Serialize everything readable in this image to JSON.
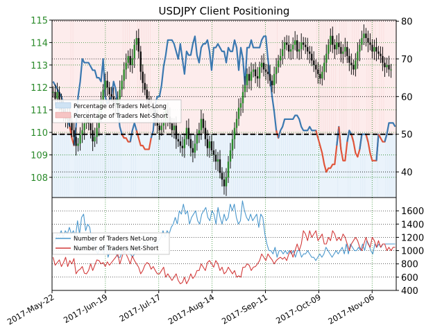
{
  "chart_data": [
    {
      "type": "line",
      "title": "USDJPY Client Positioning",
      "left_axis": {
        "ticks": [
          108,
          109,
          110,
          111,
          112,
          113,
          114,
          115
        ],
        "range": [
          107.1,
          115.0
        ],
        "color": "#2a8a2a"
      },
      "right_axis": {
        "ticks": [
          40,
          50,
          60,
          70,
          80
        ],
        "range": [
          33.2,
          80.3
        ]
      },
      "reference_line": 50,
      "legend": {
        "placement": "left",
        "entries": [
          {
            "name": "Percentage of Traders Net-Long",
            "color": "#cfe3f4"
          },
          {
            "name": "Percentage of Traders Net-Short",
            "color": "#f6c4c4"
          }
        ]
      },
      "series": [
        {
          "name": "Percentage of Traders Net-Long",
          "color": "#3a78b0",
          "values": [
            64,
            63,
            62,
            61,
            60,
            58,
            56,
            54,
            52,
            49,
            47,
            52,
            60,
            64,
            70,
            69,
            69,
            69,
            68,
            67,
            67,
            65,
            65,
            64,
            70,
            60,
            58,
            59,
            60,
            64,
            62,
            57,
            52,
            50,
            49,
            49,
            48,
            48,
            51,
            53,
            51,
            49,
            47,
            47,
            46,
            46,
            46,
            49,
            51,
            58,
            60,
            60,
            63,
            68,
            71,
            75,
            75,
            75,
            74,
            72,
            70,
            74,
            70,
            66,
            72,
            71,
            71,
            74,
            76,
            71,
            69,
            73,
            74,
            74,
            75,
            72,
            67,
            73,
            73,
            74,
            73,
            72,
            72,
            69,
            73,
            72,
            72,
            75,
            73,
            67,
            73,
            70,
            63,
            73,
            73,
            75,
            73,
            73,
            73,
            73,
            75,
            76,
            76,
            70,
            65,
            60,
            56,
            51,
            49,
            51,
            52,
            54,
            54,
            54,
            54,
            54,
            55,
            55,
            54,
            52,
            51,
            51,
            51,
            52,
            51,
            51,
            51,
            49,
            47,
            45,
            42,
            40,
            41,
            41,
            42,
            42,
            47,
            52,
            46,
            43,
            43,
            48,
            51,
            50,
            48,
            45,
            44,
            46,
            50,
            50,
            50,
            48,
            45,
            43,
            43,
            43,
            50,
            49,
            48,
            48,
            50,
            53,
            53,
            53,
            52
          ]
        },
        {
          "name": "USDJPY",
          "color": "#111111",
          "values": [
            111.8,
            111.5,
            111.8,
            111.4,
            111.0,
            110.8,
            110.6,
            110.9,
            110.5,
            110.1,
            109.8,
            109.4,
            109.5,
            109.9,
            110.1,
            110.4,
            110.6,
            110.4,
            110.1,
            109.6,
            109.8,
            110.2,
            110.9,
            111.4,
            111.9,
            112.3,
            112.0,
            111.7,
            111.6,
            111.3,
            111.1,
            111.5,
            111.9,
            112.3,
            112.8,
            113.1,
            113.4,
            113.0,
            113.3,
            113.9,
            114.2,
            113.6,
            112.7,
            112.2,
            111.9,
            111.5,
            111.2,
            111.1,
            111.0,
            110.6,
            110.3,
            110.1,
            110.3,
            110.5,
            111.0,
            110.7,
            110.4,
            110.1,
            110.3,
            109.7,
            109.6,
            109.4,
            109.3,
            109.7,
            110.2,
            109.7,
            109.3,
            109.1,
            109.5,
            109.9,
            110.1,
            110.6,
            110.2,
            109.7,
            109.3,
            109.6,
            109.2,
            109.0,
            108.7,
            108.8,
            108.2,
            107.9,
            107.6,
            108.0,
            108.7,
            109.2,
            109.7,
            110.2,
            110.6,
            111.1,
            111.3,
            111.8,
            112.1,
            112.6,
            112.3,
            112.7,
            112.8,
            112.5,
            112.4,
            112.9,
            113.1,
            112.8,
            112.7,
            112.6,
            112.3,
            112.1,
            112.6,
            112.9,
            113.2,
            113.4,
            113.7,
            114.0,
            113.9,
            113.6,
            113.7,
            113.9,
            114.1,
            113.6,
            113.7,
            114.0,
            113.9,
            113.8,
            113.6,
            113.5,
            113.2,
            113.0,
            112.8,
            112.6,
            112.4,
            112.7,
            113.1,
            113.5,
            113.9,
            114.3,
            113.9,
            113.7,
            114.0,
            113.8,
            113.5,
            113.6,
            113.8,
            113.4,
            113.1,
            113.0,
            112.8,
            113.2,
            113.6,
            113.9,
            114.2,
            114.4,
            114.2,
            114.0,
            113.9,
            113.6,
            113.8,
            113.6,
            113.5,
            113.4,
            113.1,
            112.9,
            113.0,
            112.8,
            112.8
          ]
        }
      ]
    },
    {
      "type": "line",
      "right_axis": {
        "ticks": [
          400,
          600,
          800,
          1000,
          1200,
          1400,
          1600
        ],
        "range": [
          400,
          1800
        ]
      },
      "x_ticks": [
        "2017-May-22",
        "2017-Jun-19",
        "2017-Jul-17",
        "2017-Aug-14",
        "2017-Sep-11",
        "2017-Oct-09",
        "2017-Nov-06"
      ],
      "legend": {
        "placement": "left"
      },
      "series": [
        {
          "name": "Number of Traders Net-Long",
          "color": "#4a97cc",
          "values": [
            1100,
            1150,
            1250,
            1220,
            1300,
            1200,
            1300,
            1250,
            1350,
            1250,
            1300,
            1200,
            1450,
            1250,
            1500,
            1550,
            1300,
            1400,
            1350,
            1150,
            1150,
            1000,
            950,
            1050,
            1050,
            950,
            1100,
            900,
            1000,
            1000,
            1050,
            950,
            900,
            900,
            1000,
            950,
            1050,
            1000,
            950,
            900,
            950,
            1000,
            1050,
            1050,
            1100,
            1150,
            1100,
            1050,
            1050,
            1100,
            1100,
            1100,
            1150,
            1200,
            1300,
            1200,
            1300,
            1250,
            1350,
            1400,
            1500,
            1400,
            1600,
            1550,
            1700,
            1550,
            1600,
            1400,
            1500,
            1550,
            1600,
            1450,
            1400,
            1550,
            1600,
            1650,
            1500,
            1450,
            1600,
            1550,
            1400,
            1650,
            1500,
            1400,
            1550,
            1450,
            1500,
            1700,
            1600,
            1700,
            1500,
            1400,
            1450,
            1750,
            1600,
            1500,
            1450,
            1550,
            1450,
            1500,
            1550,
            1350,
            1550,
            1500,
            1250,
            1100,
            1000,
            1000,
            950,
            1050,
            900,
            1000,
            1000,
            950,
            1000,
            950,
            1000,
            950,
            1000,
            900,
            1000,
            1000,
            900,
            950,
            950,
            1000,
            950,
            900,
            900,
            850,
            900,
            950,
            900,
            950,
            1050,
            1000,
            950,
            900,
            950,
            1000,
            950,
            1000,
            1050,
            950,
            1100,
            950,
            1100,
            1050,
            1000,
            1000,
            1050,
            1000,
            1100,
            1000,
            1150,
            1100,
            1000,
            950,
            1100,
            1050,
            1100,
            1050,
            1100,
            1100,
            1100,
            1100,
            1100,
            1100,
            1100
          ]
        },
        {
          "name": "Number of Traders Net-Short",
          "color": "#d23a3a",
          "values": [
            900,
            780,
            820,
            860,
            760,
            820,
            900,
            760,
            850,
            800,
            880,
            650,
            700,
            720,
            760,
            660,
            650,
            700,
            800,
            700,
            780,
            860,
            850,
            800,
            820,
            760,
            830,
            780,
            820,
            860,
            900,
            950,
            800,
            900,
            1000,
            950,
            880,
            800,
            920,
            850,
            800,
            750,
            650,
            700,
            780,
            820,
            800,
            720,
            760,
            700,
            650,
            650,
            700,
            750,
            600,
            650,
            600,
            550,
            600,
            650,
            550,
            500,
            520,
            600,
            500,
            560,
            650,
            580,
            620,
            700,
            700,
            800,
            750,
            700,
            820,
            850,
            800,
            750,
            850,
            800,
            700,
            750,
            650,
            680,
            750,
            700,
            650,
            700,
            600,
            620,
            600,
            750,
            750,
            800,
            780,
            700,
            750,
            760,
            800,
            850,
            950,
            900,
            850,
            950,
            900,
            860,
            800,
            850,
            880,
            900,
            870,
            900,
            850,
            950,
            1000,
            900,
            1000,
            1100,
            1000,
            1100,
            1300,
            1250,
            1150,
            1300,
            1200,
            1250,
            1300,
            1150,
            1200,
            1250,
            1100,
            1100,
            1200,
            1150,
            1300,
            1250,
            1150,
            1200,
            1150,
            1250,
            1200,
            1100,
            1000,
            1100,
            1150,
            1200,
            1150,
            1050,
            1000,
            1100,
            1200,
            1100,
            1050,
            1200,
            1150,
            1050,
            1150,
            1050,
            1100,
            1100,
            1000,
            1050,
            1000,
            1050,
            1050
          ]
        }
      ]
    }
  ]
}
